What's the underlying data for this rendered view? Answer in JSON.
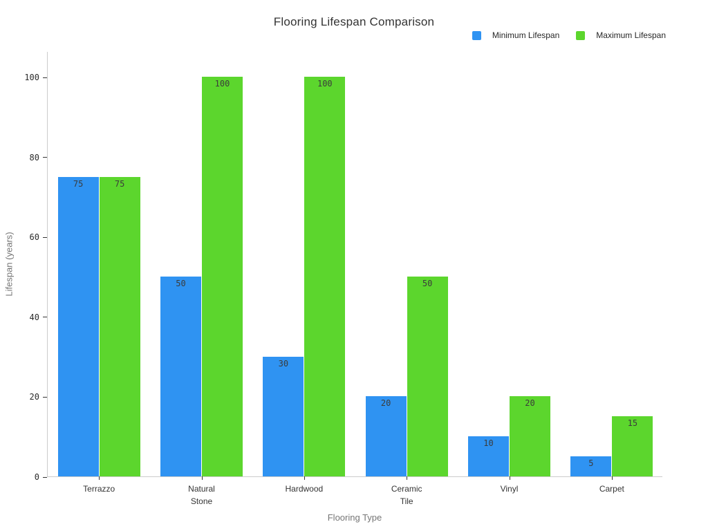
{
  "chart_data": {
    "type": "bar",
    "title": "Flooring Lifespan Comparison",
    "xlabel": "Flooring Type",
    "ylabel": "Lifespan (years)",
    "categories": [
      "Terrazzo",
      "Natural Stone",
      "Hardwood",
      "Ceramic Tile",
      "Vinyl",
      "Carpet"
    ],
    "category_label_lines": [
      [
        "Terrazzo"
      ],
      [
        "Natural",
        "Stone"
      ],
      [
        "Hardwood"
      ],
      [
        "Ceramic",
        "Tile"
      ],
      [
        "Vinyl"
      ],
      [
        "Carpet"
      ]
    ],
    "series": [
      {
        "name": "Minimum Lifespan",
        "color": "#2f93f2",
        "values": [
          75,
          50,
          30,
          20,
          10,
          5
        ]
      },
      {
        "name": "Maximum Lifespan",
        "color": "#5cd62d",
        "values": [
          75,
          100,
          100,
          50,
          20,
          15
        ]
      }
    ],
    "bar_value_labels": true,
    "yticks": [
      0,
      20,
      40,
      60,
      80,
      100
    ],
    "ylim": [
      0,
      100
    ],
    "grid": false,
    "legend_position": "top-right",
    "colors": {
      "min_series": "#2f93f2",
      "max_series": "#5cd62d",
      "axis_line": "#cccccc",
      "tick_mark": "#333333",
      "tick_text": "#2b2b2b",
      "axis_title_text": "#757575",
      "title_text": "#333333",
      "bar_label_text": "#3b3b3b",
      "background": "#ffffff"
    }
  }
}
